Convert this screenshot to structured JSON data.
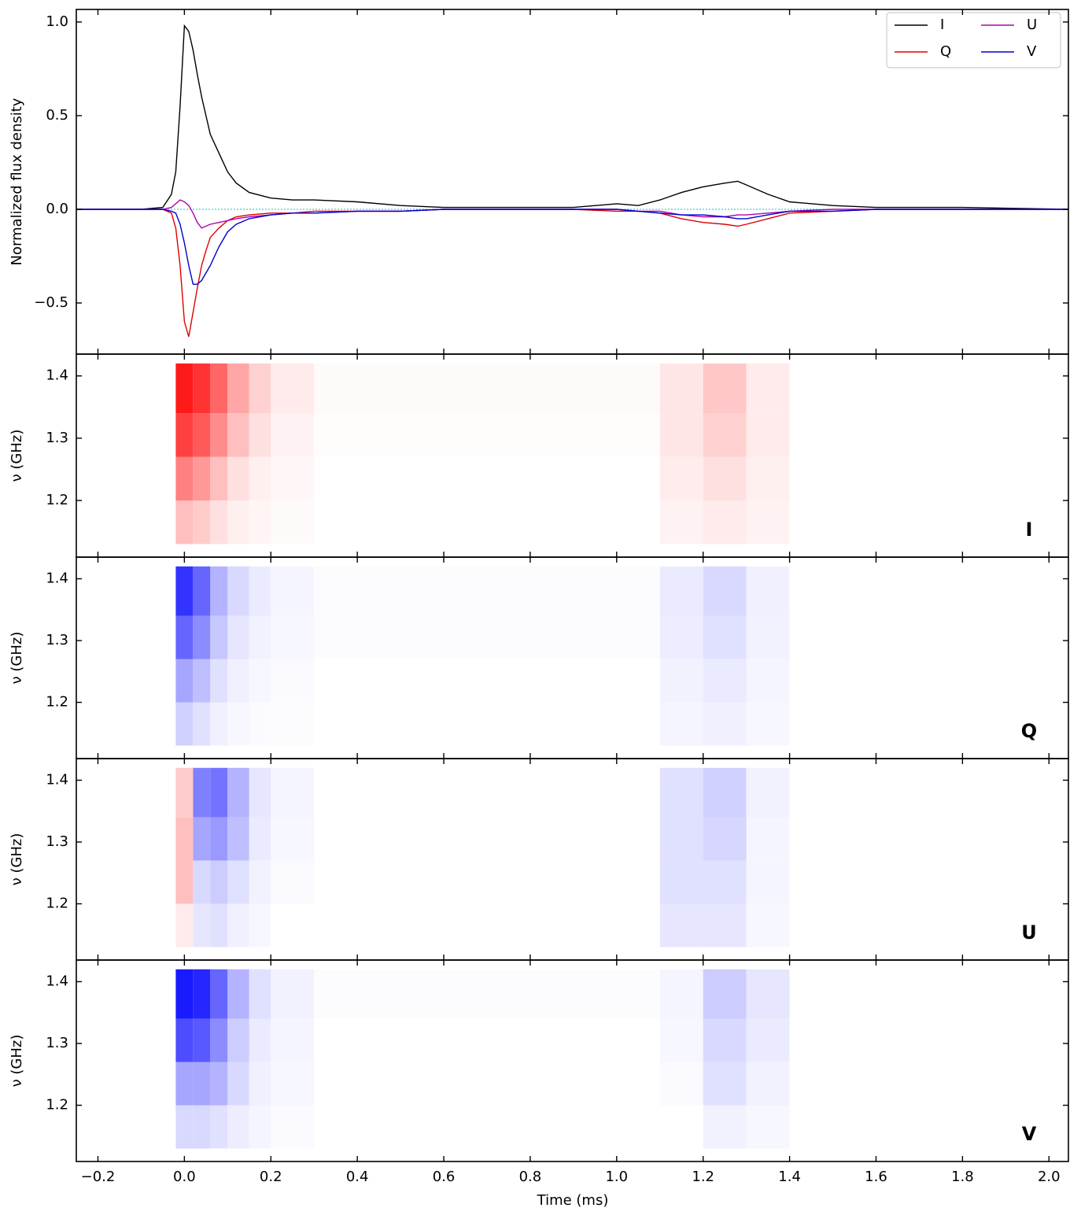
{
  "x_axis": {
    "xlim": [
      -0.25,
      2.045
    ],
    "xlabel": "Time (ms)",
    "xticks": [
      {
        "value": -0.2,
        "label": "−0.2"
      },
      {
        "value": 0,
        "label": "0.0"
      },
      0.2,
      0.4,
      0.6,
      0.8,
      {
        "value": 1,
        "label": "1.0"
      },
      1.2,
      1.4,
      1.6,
      1.8,
      {
        "value": 2,
        "label": "2.0"
      }
    ]
  },
  "chart_data": [
    {
      "type": "line",
      "ylabel": "Normalized flux density",
      "ylim": [
        -0.773,
        1.067
      ],
      "yticks": [
        {
          "value": -0.5,
          "label": "−0.5"
        },
        {
          "value": 0,
          "label": "0.0"
        },
        0.5,
        {
          "value": 1,
          "label": "1.0"
        }
      ],
      "legend": "upper right",
      "legend_columns": 2,
      "x": [
        -0.25,
        -0.1,
        -0.05,
        -0.03,
        -0.02,
        -0.01,
        0,
        0.01,
        0.02,
        0.03,
        0.04,
        0.05,
        0.06,
        0.08,
        0.1,
        0.12,
        0.15,
        0.2,
        0.25,
        0.3,
        0.4,
        0.5,
        0.6,
        0.7,
        0.8,
        0.9,
        1.0,
        1.05,
        1.1,
        1.15,
        1.2,
        1.25,
        1.28,
        1.3,
        1.35,
        1.4,
        1.5,
        1.6,
        1.8,
        2.045
      ],
      "series": [
        {
          "name": "I",
          "color": "#000000",
          "values": [
            0,
            0,
            0.01,
            0.08,
            0.2,
            0.55,
            0.98,
            0.95,
            0.85,
            0.72,
            0.6,
            0.5,
            0.4,
            0.3,
            0.2,
            0.14,
            0.09,
            0.06,
            0.05,
            0.05,
            0.04,
            0.02,
            0.01,
            0.01,
            0.01,
            0.01,
            0.03,
            0.02,
            0.05,
            0.09,
            0.12,
            0.14,
            0.15,
            0.13,
            0.08,
            0.04,
            0.02,
            0.01,
            0.01,
            0
          ]
        },
        {
          "name": "Q",
          "color": "#e00000",
          "values": [
            0,
            0,
            0,
            -0.02,
            -0.1,
            -0.3,
            -0.6,
            -0.68,
            -0.55,
            -0.42,
            -0.3,
            -0.22,
            -0.15,
            -0.1,
            -0.06,
            -0.04,
            -0.03,
            -0.02,
            -0.02,
            -0.01,
            -0.01,
            -0.01,
            0,
            0,
            0,
            0,
            -0.01,
            -0.01,
            -0.02,
            -0.05,
            -0.07,
            -0.08,
            -0.09,
            -0.08,
            -0.05,
            -0.02,
            -0.01,
            0,
            0,
            0
          ]
        },
        {
          "name": "U",
          "color": "#b000b0",
          "values": [
            0,
            0,
            0,
            0.01,
            0.03,
            0.05,
            0.04,
            0.02,
            -0.02,
            -0.07,
            -0.1,
            -0.09,
            -0.08,
            -0.07,
            -0.06,
            -0.05,
            -0.04,
            -0.03,
            -0.02,
            -0.02,
            -0.01,
            -0.01,
            0,
            0,
            0,
            0,
            0,
            -0.01,
            -0.01,
            -0.03,
            -0.04,
            -0.04,
            -0.03,
            -0.03,
            -0.02,
            -0.01,
            0,
            0,
            0,
            0
          ]
        },
        {
          "name": "V",
          "color": "#0000d0",
          "values": [
            0,
            0,
            0,
            -0.01,
            -0.02,
            -0.08,
            -0.18,
            -0.3,
            -0.4,
            -0.4,
            -0.38,
            -0.34,
            -0.3,
            -0.2,
            -0.12,
            -0.08,
            -0.05,
            -0.03,
            -0.02,
            -0.02,
            -0.01,
            -0.01,
            0,
            0,
            0,
            0,
            0,
            -0.01,
            -0.02,
            -0.03,
            -0.03,
            -0.04,
            -0.05,
            -0.05,
            -0.03,
            -0.01,
            -0.01,
            0,
            0,
            0
          ]
        }
      ]
    },
    {
      "type": "heatmap",
      "label": "I",
      "ylabel": "ν (GHz)",
      "ylim": [
        1.109,
        1.435
      ],
      "yticks": [
        1.2,
        1.3,
        1.4
      ],
      "vlim": [
        -1,
        1
      ],
      "negative_color": "#0000ff",
      "positive_color": "#ff0000",
      "x_edges": [
        -0.24,
        -0.02,
        0.02,
        0.06,
        0.1,
        0.15,
        0.2,
        0.3,
        1.1,
        1.2,
        1.3,
        1.4,
        2.04
      ],
      "y_edges": [
        1.13,
        1.2,
        1.27,
        1.34,
        1.42
      ],
      "values": [
        [
          0,
          0.25,
          0.2,
          0.12,
          0.06,
          0.04,
          0.02,
          0,
          0.05,
          0.08,
          0.05,
          0
        ],
        [
          0,
          0.5,
          0.4,
          0.25,
          0.12,
          0.06,
          0.03,
          0,
          0.07,
          0.12,
          0.06,
          0
        ],
        [
          0,
          0.75,
          0.65,
          0.45,
          0.25,
          0.12,
          0.05,
          0.01,
          0.1,
          0.18,
          0.08,
          0
        ],
        [
          0,
          0.9,
          0.8,
          0.6,
          0.35,
          0.18,
          0.08,
          0.02,
          0.1,
          0.22,
          0.08,
          0
        ]
      ]
    },
    {
      "type": "heatmap",
      "label": "Q",
      "ylabel": "ν (GHz)",
      "ylim": [
        1.109,
        1.435
      ],
      "yticks": [
        1.2,
        1.3,
        1.4
      ],
      "vlim": [
        -1,
        1
      ],
      "negative_color": "#0000ff",
      "positive_color": "#ff0000",
      "x_edges": [
        -0.24,
        -0.02,
        0.02,
        0.06,
        0.1,
        0.15,
        0.2,
        0.3,
        1.1,
        1.2,
        1.3,
        1.4,
        2.04
      ],
      "y_edges": [
        1.13,
        1.2,
        1.27,
        1.34,
        1.42
      ],
      "values": [
        [
          0,
          -0.18,
          -0.12,
          -0.06,
          -0.03,
          -0.02,
          -0.01,
          0,
          -0.04,
          -0.06,
          -0.03,
          0
        ],
        [
          0,
          -0.35,
          -0.25,
          -0.12,
          -0.06,
          -0.03,
          -0.02,
          0,
          -0.05,
          -0.08,
          -0.04,
          0
        ],
        [
          0,
          -0.6,
          -0.45,
          -0.22,
          -0.1,
          -0.05,
          -0.03,
          -0.01,
          -0.07,
          -0.12,
          -0.05,
          0
        ],
        [
          0,
          -0.8,
          -0.6,
          -0.3,
          -0.15,
          -0.08,
          -0.04,
          -0.01,
          -0.08,
          -0.15,
          -0.06,
          0
        ]
      ]
    },
    {
      "type": "heatmap",
      "label": "U",
      "ylabel": "ν (GHz)",
      "ylim": [
        1.109,
        1.435
      ],
      "yticks": [
        1.2,
        1.3,
        1.4
      ],
      "vlim": [
        -1,
        1
      ],
      "negative_color": "#0000ff",
      "positive_color": "#ff0000",
      "x_edges": [
        -0.24,
        -0.02,
        0.02,
        0.06,
        0.1,
        0.15,
        0.2,
        0.3,
        1.1,
        1.2,
        1.3,
        1.4,
        2.04
      ],
      "y_edges": [
        1.13,
        1.2,
        1.27,
        1.34,
        1.42
      ],
      "values": [
        [
          0,
          0.08,
          -0.1,
          -0.12,
          -0.06,
          -0.03,
          0,
          0,
          -0.1,
          -0.1,
          -0.03,
          0
        ],
        [
          0,
          0.25,
          -0.15,
          -0.2,
          -0.12,
          -0.05,
          -0.02,
          0,
          -0.12,
          -0.12,
          -0.04,
          0
        ],
        [
          0,
          0.25,
          -0.35,
          -0.4,
          -0.25,
          -0.08,
          -0.03,
          0,
          -0.12,
          -0.16,
          -0.04,
          0
        ],
        [
          0,
          0.2,
          -0.5,
          -0.55,
          -0.3,
          -0.1,
          -0.04,
          0,
          -0.12,
          -0.18,
          -0.05,
          0
        ]
      ]
    },
    {
      "type": "heatmap",
      "label": "V",
      "ylabel": "ν (GHz)",
      "ylim": [
        1.109,
        1.435
      ],
      "yticks": [
        1.2,
        1.3,
        1.4
      ],
      "vlim": [
        -1,
        1
      ],
      "negative_color": "#0000ff",
      "positive_color": "#ff0000",
      "x_edges": [
        -0.24,
        -0.02,
        0.02,
        0.06,
        0.1,
        0.15,
        0.2,
        0.3,
        1.1,
        1.2,
        1.3,
        1.4,
        2.04
      ],
      "y_edges": [
        1.13,
        1.2,
        1.27,
        1.34,
        1.42
      ],
      "values": [
        [
          0,
          -0.15,
          -0.15,
          -0.12,
          -0.07,
          -0.04,
          -0.02,
          0,
          0,
          -0.05,
          -0.03,
          0
        ],
        [
          0,
          -0.35,
          -0.35,
          -0.3,
          -0.15,
          -0.06,
          -0.03,
          0,
          -0.02,
          -0.12,
          -0.05,
          0
        ],
        [
          0,
          -0.7,
          -0.65,
          -0.45,
          -0.2,
          -0.08,
          -0.04,
          0,
          -0.03,
          -0.15,
          -0.08,
          0
        ],
        [
          0,
          -0.9,
          -0.85,
          -0.6,
          -0.3,
          -0.12,
          -0.05,
          -0.01,
          -0.04,
          -0.2,
          -0.1,
          0
        ]
      ]
    }
  ]
}
